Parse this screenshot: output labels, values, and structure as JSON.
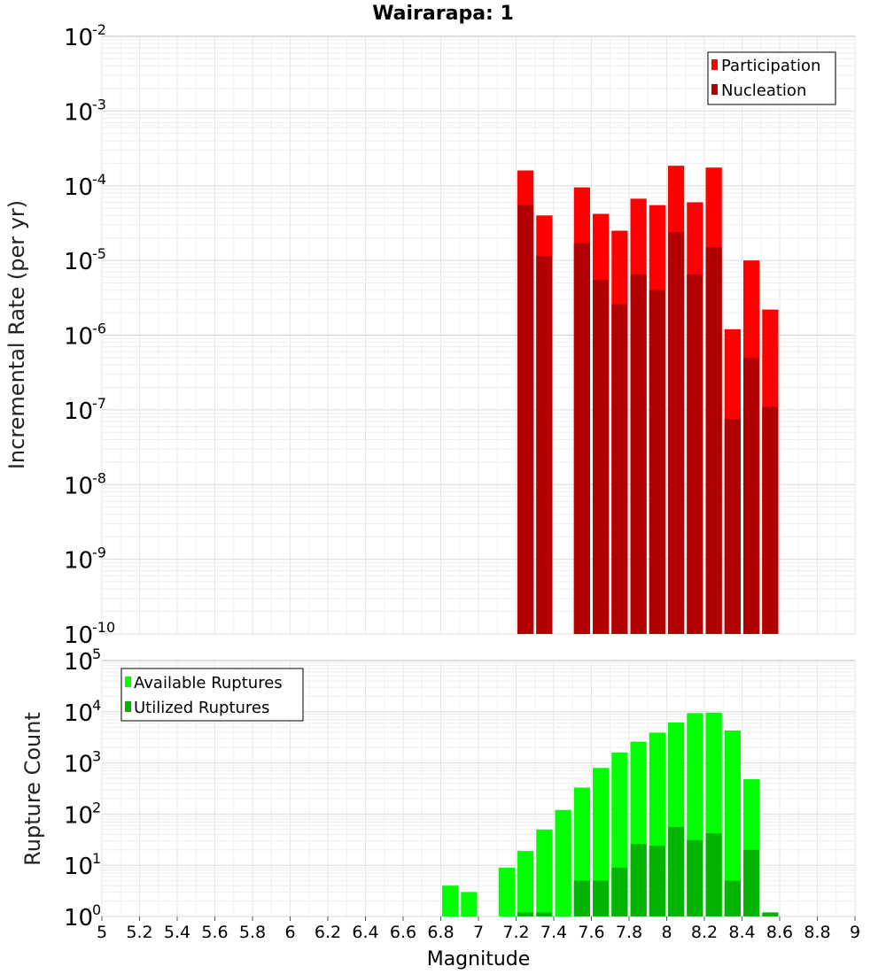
{
  "chart_data": [
    {
      "type": "bar",
      "title": "Wairarapa: 1",
      "ylabel": "Incremental Rate (per yr)",
      "yscale": "log",
      "ylim": [
        1e-10,
        0.01
      ],
      "xlim": [
        5,
        9
      ],
      "legend_position": "top-right",
      "overlay": true,
      "grid": true,
      "x": [
        7.25,
        7.35,
        7.45,
        7.55,
        7.65,
        7.75,
        7.85,
        7.95,
        8.05,
        8.15,
        8.25,
        8.35,
        8.45,
        8.55
      ],
      "series": [
        {
          "name": "Participation",
          "color": "#ff0000",
          "values": [
            0.00016,
            4e-05,
            null,
            9.5e-05,
            4.2e-05,
            2.5e-05,
            6.7e-05,
            5.5e-05,
            0.000185,
            6e-05,
            0.000175,
            1.2e-06,
            1e-05,
            2.2e-06
          ]
        },
        {
          "name": "Nucleation",
          "color": "#b20000",
          "values": [
            5.5e-05,
            1.15e-05,
            null,
            1.7e-05,
            5.5e-06,
            2.6e-06,
            6.5e-06,
            4e-06,
            2.4e-05,
            6.5e-06,
            1.5e-05,
            7.5e-08,
            5e-07,
            1.1e-07
          ]
        }
      ]
    },
    {
      "type": "bar",
      "xlabel": "Magnitude",
      "ylabel": "Rupture Count",
      "yscale": "log",
      "ylim": [
        1,
        100000.0
      ],
      "xlim": [
        5,
        9
      ],
      "legend_position": "top-left",
      "overlay": true,
      "grid": true,
      "x": [
        6.85,
        6.95,
        7.15,
        7.25,
        7.35,
        7.45,
        7.55,
        7.65,
        7.75,
        7.85,
        7.95,
        8.05,
        8.15,
        8.25,
        8.35,
        8.45,
        8.55
      ],
      "series": [
        {
          "name": "Available Ruptures",
          "color": "#00ff00",
          "values": [
            4,
            3,
            9,
            19,
            50,
            120,
            330,
            800,
            1600,
            2600,
            3900,
            6200,
            9400,
            9600,
            4300,
            480,
            null
          ]
        },
        {
          "name": "Utilized Ruptures",
          "color": "#00b400",
          "values": [
            null,
            null,
            null,
            1.2,
            1.2,
            null,
            5,
            5,
            9,
            26,
            24,
            56,
            31,
            42,
            5,
            20,
            1.2
          ]
        }
      ]
    }
  ],
  "x_ticks": [
    "5",
    "5.2",
    "5.4",
    "5.6",
    "5.8",
    "6",
    "6.2",
    "6.4",
    "6.6",
    "6.8",
    "7",
    "7.2",
    "7.4",
    "7.6",
    "7.8",
    "8",
    "8.2",
    "8.4",
    "8.6",
    "8.8",
    "9"
  ],
  "top_y_ticks": [
    {
      "base": "10",
      "exp": "-2"
    },
    {
      "base": "10",
      "exp": "-3"
    },
    {
      "base": "10",
      "exp": "-4"
    },
    {
      "base": "10",
      "exp": "-5"
    },
    {
      "base": "10",
      "exp": "-6"
    },
    {
      "base": "10",
      "exp": "-7"
    },
    {
      "base": "10",
      "exp": "-8"
    },
    {
      "base": "10",
      "exp": "-9"
    },
    {
      "base": "10",
      "exp": "-10"
    }
  ],
  "bottom_y_ticks": [
    {
      "base": "10",
      "exp": "5"
    },
    {
      "base": "10",
      "exp": "4"
    },
    {
      "base": "10",
      "exp": "3"
    },
    {
      "base": "10",
      "exp": "2"
    },
    {
      "base": "10",
      "exp": "1"
    },
    {
      "base": "10",
      "exp": "0"
    }
  ]
}
